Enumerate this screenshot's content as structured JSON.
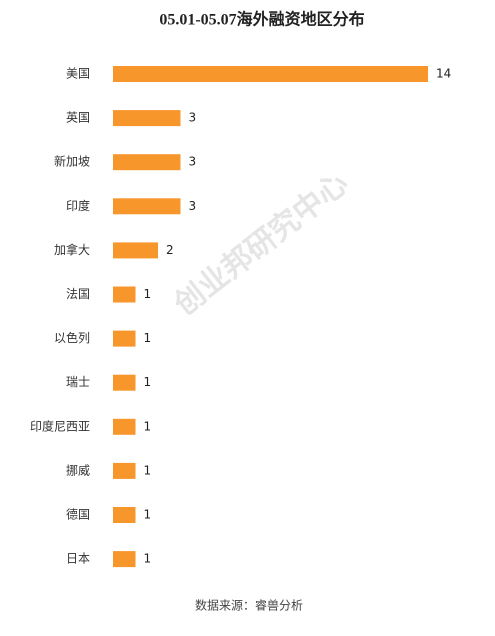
{
  "chart_data": {
    "type": "hbar",
    "title": "05.01-05.07海外融资地区分布",
    "categories": [
      "美国",
      "英国",
      "新加坡",
      "印度",
      "加拿大",
      "法国",
      "以色列",
      "瑞士",
      "印度尼西亚",
      "挪威",
      "德国",
      "日本"
    ],
    "values": [
      14,
      3,
      3,
      3,
      2,
      1,
      1,
      1,
      1,
      1,
      1,
      1
    ],
    "color": "#f7962b",
    "xlim": [
      0,
      14
    ],
    "watermark": "创业邦研究中心",
    "source": "数据来源：睿兽分析"
  }
}
